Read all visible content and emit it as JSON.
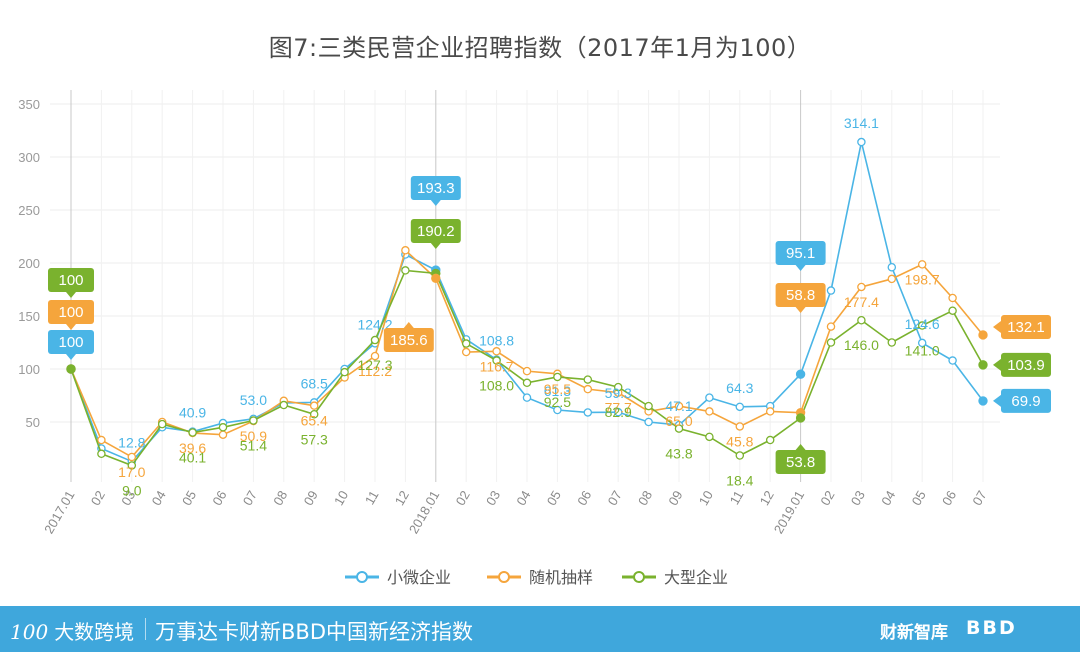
{
  "title": "图7:三类民营企业招聘指数（2017年1月为100）",
  "footer": {
    "logo": "大数跨境",
    "logo_mark": "100",
    "text": "万事达卡财新BBD中国新经济指数",
    "brand1": "财新智库",
    "brand2": "BBD"
  },
  "chart_data": {
    "type": "line",
    "categories": [
      "2017.01",
      "02",
      "03",
      "04",
      "05",
      "06",
      "07",
      "08",
      "09",
      "10",
      "11",
      "12",
      "2018.01",
      "02",
      "03",
      "04",
      "05",
      "06",
      "07",
      "08",
      "09",
      "10",
      "11",
      "12",
      "2019.01",
      "02",
      "03",
      "04",
      "05",
      "06",
      "07"
    ],
    "ylim": [
      0,
      350
    ],
    "yticks": [
      50,
      100,
      150,
      200,
      250,
      300,
      350
    ],
    "grid": true,
    "legend_position": "bottom",
    "series": [
      {
        "name": "小微企业",
        "color": "#4ab5e6",
        "values": [
          100,
          25,
          12.8,
          45,
          40.9,
          49,
          53,
          68,
          68.5,
          100,
          124.2,
          208,
          193.3,
          128,
          108.8,
          73,
          61.3,
          59,
          59.3,
          50,
          47.1,
          73,
          64.3,
          65,
          95.1,
          174,
          314.1,
          196,
          124.6,
          108,
          69.9
        ]
      },
      {
        "name": "随机抽样",
        "color": "#f5a53c",
        "values": [
          100,
          33,
          17.0,
          50,
          39.6,
          38,
          50.9,
          70,
          65.4,
          92,
          112.2,
          212,
          185.6,
          116,
          116.7,
          98,
          95.5,
          81,
          77.7,
          60,
          65.0,
          60,
          45.8,
          60,
          58.8,
          140,
          177.4,
          185,
          198.7,
          167,
          132.1
        ]
      },
      {
        "name": "大型企业",
        "color": "#7ab22e",
        "values": [
          100,
          20,
          9.0,
          48,
          40.1,
          45,
          51.4,
          66,
          57.3,
          97,
          127.3,
          193,
          190.2,
          124,
          108.0,
          87,
          92.5,
          90,
          82.9,
          65,
          43.8,
          36,
          18.4,
          33,
          53.8,
          125,
          146.0,
          125,
          141.0,
          155,
          103.9
        ]
      }
    ],
    "annotations": [
      {
        "series": 0,
        "index": 2,
        "text": "12.8"
      },
      {
        "series": 0,
        "index": 4,
        "text": "40.9"
      },
      {
        "series": 0,
        "index": 6,
        "text": "53.0"
      },
      {
        "series": 0,
        "index": 8,
        "text": "68.5"
      },
      {
        "series": 0,
        "index": 10,
        "text": "124.2"
      },
      {
        "series": 0,
        "index": 14,
        "text": "108.8"
      },
      {
        "series": 0,
        "index": 16,
        "text": "61.3"
      },
      {
        "series": 0,
        "index": 18,
        "text": "59.3"
      },
      {
        "series": 0,
        "index": 20,
        "text": "47.1"
      },
      {
        "series": 0,
        "index": 22,
        "text": "64.3"
      },
      {
        "series": 0,
        "index": 26,
        "text": "314.1"
      },
      {
        "series": 0,
        "index": 28,
        "text": "124.6"
      },
      {
        "series": 1,
        "index": 2,
        "text": "17.0"
      },
      {
        "series": 1,
        "index": 4,
        "text": "39.6"
      },
      {
        "series": 1,
        "index": 6,
        "text": "50.9"
      },
      {
        "series": 1,
        "index": 8,
        "text": "65.4"
      },
      {
        "series": 1,
        "index": 10,
        "text": "112.2"
      },
      {
        "series": 1,
        "index": 14,
        "text": "116.7"
      },
      {
        "series": 1,
        "index": 16,
        "text": "95.5"
      },
      {
        "series": 1,
        "index": 18,
        "text": "77.7"
      },
      {
        "series": 1,
        "index": 20,
        "text": "65.0"
      },
      {
        "series": 1,
        "index": 22,
        "text": "45.8"
      },
      {
        "series": 1,
        "index": 26,
        "text": "177.4"
      },
      {
        "series": 1,
        "index": 28,
        "text": "198.7"
      },
      {
        "series": 2,
        "index": 2,
        "text": "9.0"
      },
      {
        "series": 2,
        "index": 4,
        "text": "40.1"
      },
      {
        "series": 2,
        "index": 6,
        "text": "51.4"
      },
      {
        "series": 2,
        "index": 8,
        "text": "57.3"
      },
      {
        "series": 2,
        "index": 10,
        "text": "127.3"
      },
      {
        "series": 2,
        "index": 14,
        "text": "108.0"
      },
      {
        "series": 2,
        "index": 16,
        "text": "92.5"
      },
      {
        "series": 2,
        "index": 18,
        "text": "82.9"
      },
      {
        "series": 2,
        "index": 20,
        "text": "43.8"
      },
      {
        "series": 2,
        "index": 22,
        "text": "18.4"
      },
      {
        "series": 2,
        "index": 26,
        "text": "146.0"
      },
      {
        "series": 2,
        "index": 28,
        "text": "141.0"
      }
    ],
    "callouts": [
      {
        "series": 0,
        "index": 0,
        "text": "100"
      },
      {
        "series": 1,
        "index": 0,
        "text": "100"
      },
      {
        "series": 2,
        "index": 0,
        "text": "100"
      },
      {
        "series": 0,
        "index": 12,
        "text": "193.3"
      },
      {
        "series": 2,
        "index": 12,
        "text": "190.2"
      },
      {
        "series": 1,
        "index": 12,
        "text": "185.6"
      },
      {
        "series": 0,
        "index": 24,
        "text": "95.1"
      },
      {
        "series": 1,
        "index": 24,
        "text": "58.8"
      },
      {
        "series": 2,
        "index": 24,
        "text": "53.8"
      },
      {
        "series": 1,
        "index": 30,
        "text": "132.1"
      },
      {
        "series": 2,
        "index": 30,
        "text": "103.9"
      },
      {
        "series": 0,
        "index": 30,
        "text": "69.9"
      }
    ]
  }
}
